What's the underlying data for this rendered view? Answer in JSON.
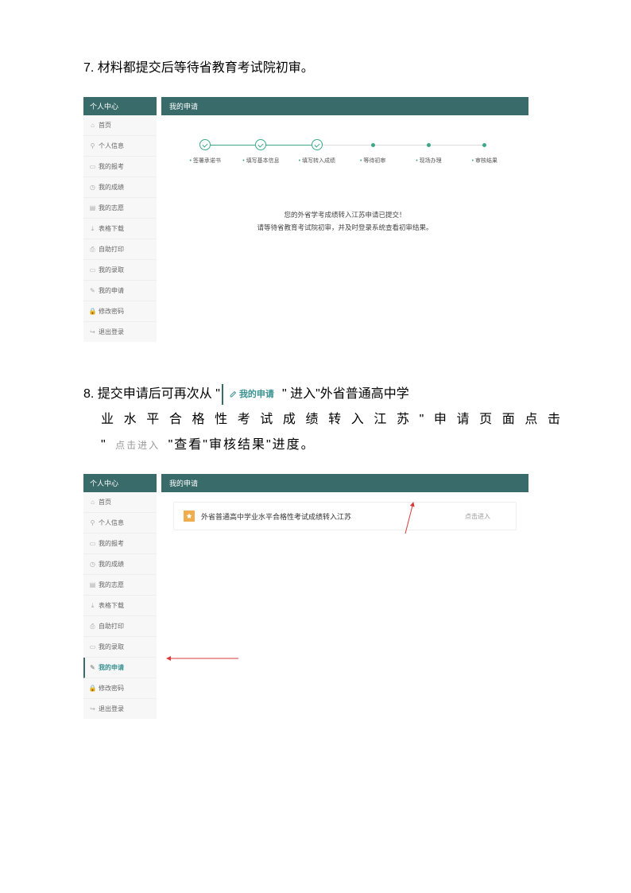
{
  "colors": {
    "teal_dark": "#3a6b6b",
    "teal_text": "#3a9292",
    "green": "#3aa889",
    "gray_text": "#999999",
    "card_icon_bg": "#f0ad4e",
    "arrow_red": "#d93a3a"
  },
  "step7": {
    "number": "7.",
    "text": "材料都提交后等待省教育考试院初审。"
  },
  "step8": {
    "number": "8.",
    "text_a": "提交申请后可再次从",
    "badge_label": "我的申请",
    "text_b": "进入\"外省普通高中学",
    "line2": "业水平合格性考试成绩转入江苏\"申请页面点击",
    "gray_label": "点击进入",
    "line3_a": "\"",
    "line3_b": "\"查看\"审核结果\"进度。"
  },
  "sidebar": {
    "header": "个人中心",
    "items": [
      {
        "label": "首页"
      },
      {
        "label": "个人信息"
      },
      {
        "label": "我的报考"
      },
      {
        "label": "我的成绩"
      },
      {
        "label": "我的志愿"
      },
      {
        "label": "表格下载"
      },
      {
        "label": "自助打印"
      },
      {
        "label": "我的录取"
      },
      {
        "label": "我的申请"
      },
      {
        "label": "修改密码"
      },
      {
        "label": "退出登录"
      }
    ]
  },
  "panel1": {
    "header": "我的申请",
    "steps": [
      {
        "label": "签署承诺书",
        "status": "done"
      },
      {
        "label": "填写基本信息",
        "status": "done"
      },
      {
        "label": "填写转入成绩",
        "status": "done"
      },
      {
        "label": "等待初审",
        "status": "pending"
      },
      {
        "label": "现场办理",
        "status": "pending"
      },
      {
        "label": "审核结果",
        "status": "pending"
      }
    ],
    "msg_line1": "您的外省学考成绩转入江苏申请已提交！",
    "msg_line2": "请等待省教育考试院初审，并及时登录系统查看初审结果。"
  },
  "panel2": {
    "header": "我的申请",
    "card_title": "外省普通高中学业水平合格性考试成绩转入江苏",
    "card_link": "点击进入"
  }
}
